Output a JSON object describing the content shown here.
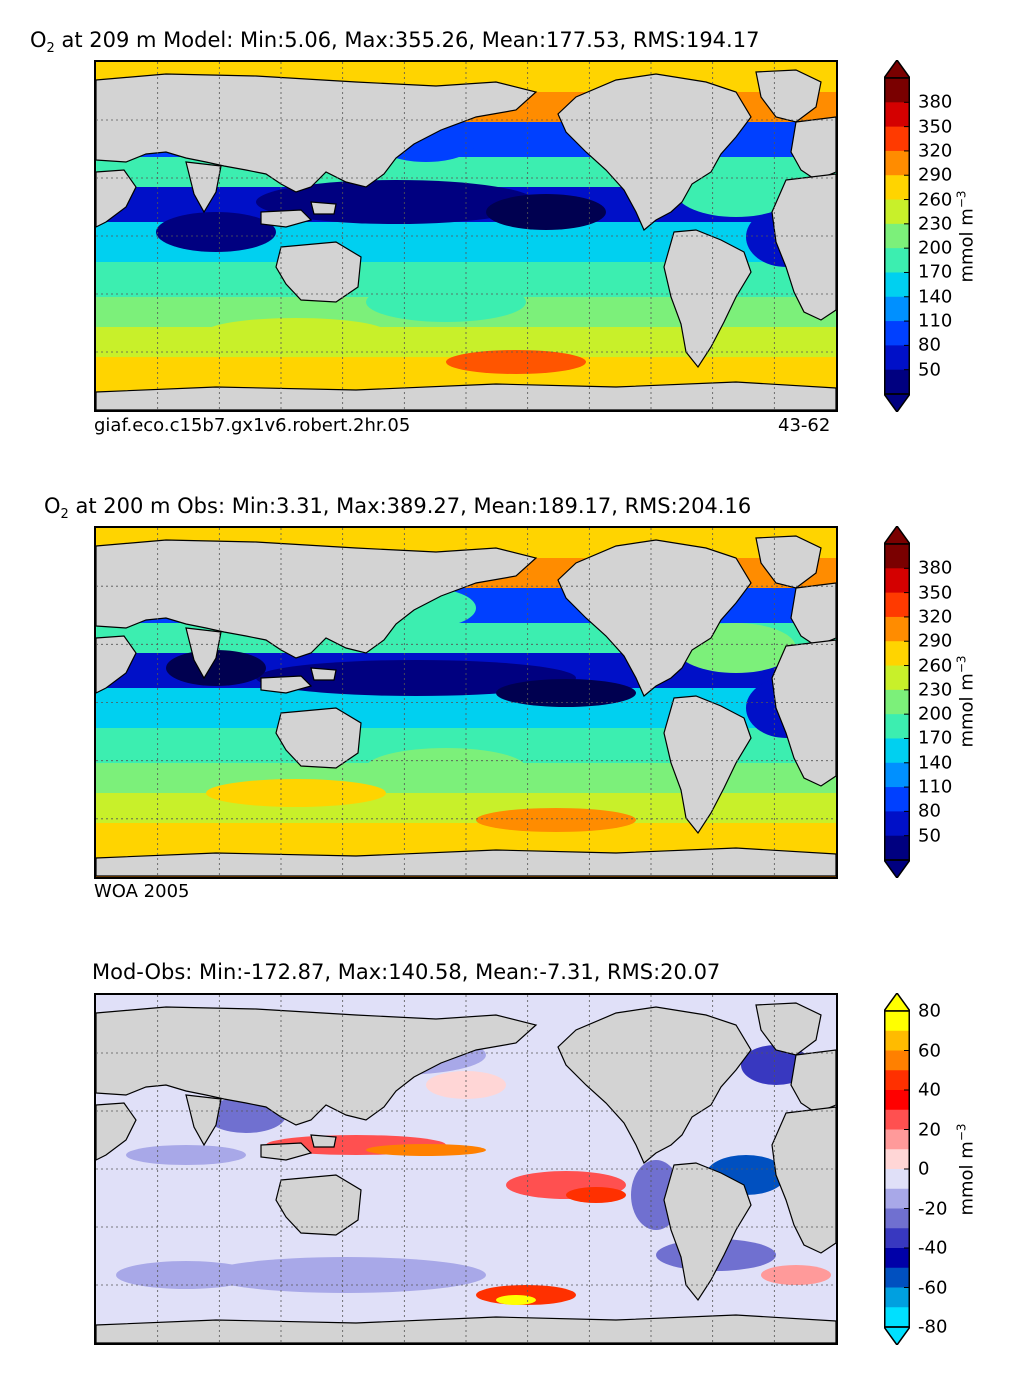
{
  "panels": [
    {
      "title_species": "O",
      "title_sub": "2",
      "title_rest": " at 209 m Model: Min:5.06, Max:355.26, Mean:177.53, RMS:194.17",
      "caption_left": "giaf.eco.c15b7.gx1v6.robert.2hr.05",
      "caption_right": "43-62",
      "colorbar": {
        "ticks": [
          "380",
          "350",
          "320",
          "290",
          "260",
          "230",
          "200",
          "170",
          "140",
          "110",
          "80",
          "50"
        ],
        "unit_main": "mmol m",
        "unit_sup": "−3",
        "colors": [
          "#7a0000",
          "#d40000",
          "#ff3a00",
          "#ff8c00",
          "#ffd400",
          "#c8f02a",
          "#7cf07a",
          "#3ceeb0",
          "#00d0f0",
          "#0090ff",
          "#0040ff",
          "#0010c8",
          "#000080"
        ]
      }
    },
    {
      "title_species": "O",
      "title_sub": "2",
      "title_rest": " at 200 m Obs: Min:3.31, Max:389.27, Mean:189.17, RMS:204.16",
      "caption_left": "WOA 2005",
      "caption_right": "",
      "colorbar": {
        "ticks": [
          "380",
          "350",
          "320",
          "290",
          "260",
          "230",
          "200",
          "170",
          "140",
          "110",
          "80",
          "50"
        ],
        "unit_main": "mmol m",
        "unit_sup": "−3",
        "colors": [
          "#7a0000",
          "#d40000",
          "#ff3a00",
          "#ff8c00",
          "#ffd400",
          "#c8f02a",
          "#7cf07a",
          "#3ceeb0",
          "#00d0f0",
          "#0090ff",
          "#0040ff",
          "#0010c8",
          "#000080"
        ]
      }
    },
    {
      "title_species": "",
      "title_sub": "",
      "title_rest": "Mod-Obs: Min:-172.87, Max:140.58, Mean:-7.31, RMS:20.07",
      "caption_left": "",
      "caption_right": "",
      "colorbar": {
        "ticks": [
          "80",
          "60",
          "40",
          "20",
          "0",
          "-20",
          "-40",
          "-60",
          "-80"
        ],
        "unit_main": "mmol m",
        "unit_sup": "−3",
        "colors": [
          "#ffff00",
          "#ffbb00",
          "#ff8000",
          "#ff3000",
          "#ff0000",
          "#ff5050",
          "#ff9a9a",
          "#ffd6d6",
          "#e0e0f8",
          "#a8a8e8",
          "#7070d0",
          "#3838c0",
          "#0000a8",
          "#0050c0",
          "#00a0e0",
          "#00e0ff"
        ]
      }
    }
  ],
  "palette": {
    "land": "#d3d3d3",
    "coast": "#000000",
    "grid": "#555555"
  }
}
